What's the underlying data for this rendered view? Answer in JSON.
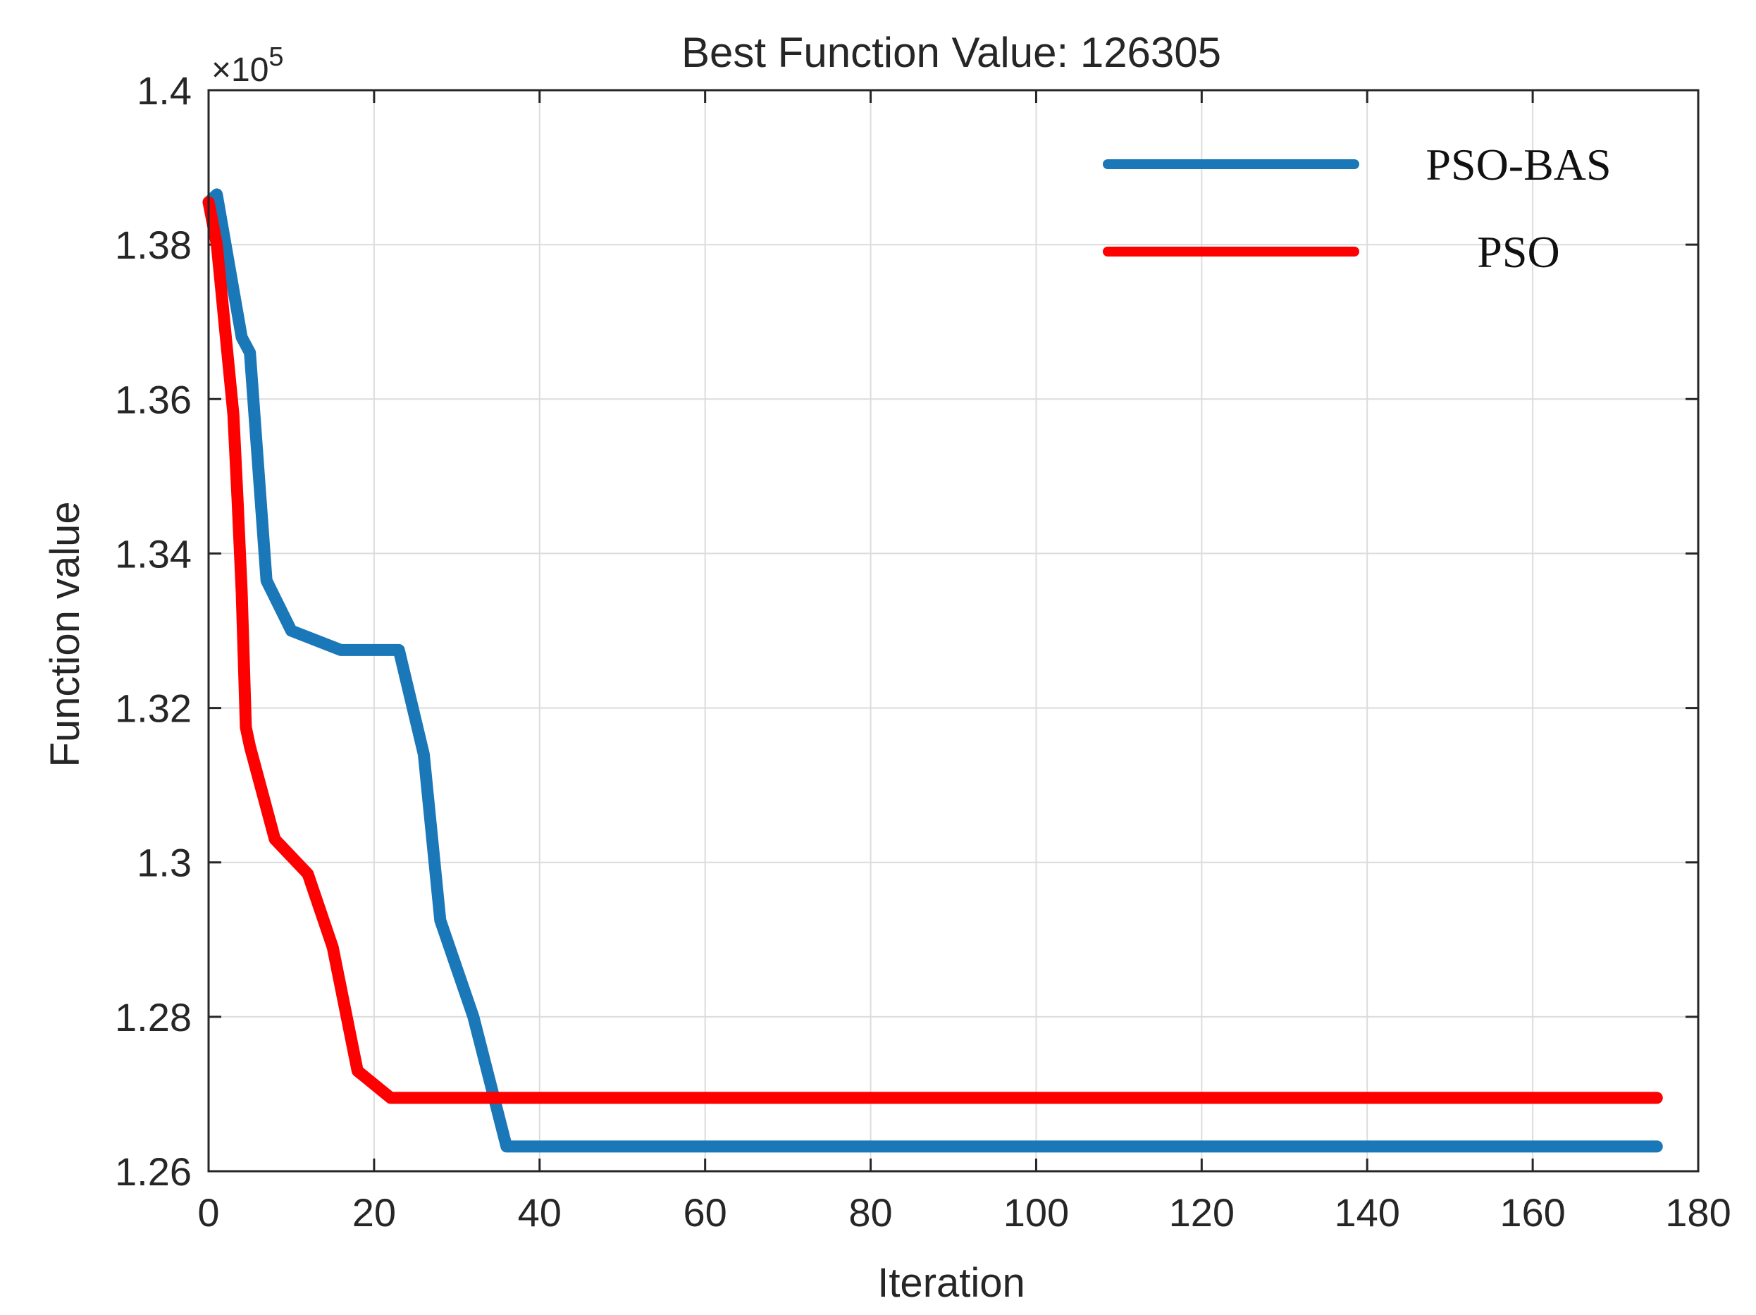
{
  "chart_data": {
    "type": "line",
    "title": "Best Function Value: 126305",
    "xlabel": "Iteration",
    "ylabel": "Function value",
    "y_exponent_label": "×10",
    "y_exponent_power": "5",
    "xlim": [
      0,
      180
    ],
    "ylim": [
      1.26,
      1.4
    ],
    "x_ticks": [
      0,
      20,
      40,
      60,
      80,
      100,
      120,
      140,
      160,
      180
    ],
    "x_tick_labels": [
      "0",
      "20",
      "40",
      "60",
      "80",
      "100",
      "120",
      "140",
      "160",
      "180"
    ],
    "y_ticks": [
      1.26,
      1.28,
      1.3,
      1.32,
      1.34,
      1.36,
      1.38,
      1.4
    ],
    "y_tick_labels": [
      "1.26",
      "1.28",
      "1.3",
      "1.32",
      "1.34",
      "1.36",
      "1.38",
      "1.4"
    ],
    "grid": true,
    "legend_position": "top-right",
    "series": [
      {
        "name": "PSO-BAS",
        "color": "#1a77b8",
        "x": [
          0,
          1,
          4,
          5,
          7,
          10,
          16,
          23,
          26,
          28,
          32,
          36,
          175
        ],
        "y": [
          1.3855,
          1.3865,
          1.368,
          1.366,
          1.3365,
          1.33,
          1.3275,
          1.3275,
          1.314,
          1.2925,
          1.28,
          1.2632,
          1.2632
        ]
      },
      {
        "name": "PSO",
        "color": "#ff0000",
        "x": [
          0,
          1,
          3,
          3.5,
          4,
          4.5,
          5,
          8,
          12,
          15,
          18,
          22,
          175
        ],
        "y": [
          1.3855,
          1.38,
          1.358,
          1.347,
          1.335,
          1.3175,
          1.315,
          1.303,
          1.2985,
          1.289,
          1.273,
          1.2695,
          1.2695
        ]
      }
    ]
  }
}
